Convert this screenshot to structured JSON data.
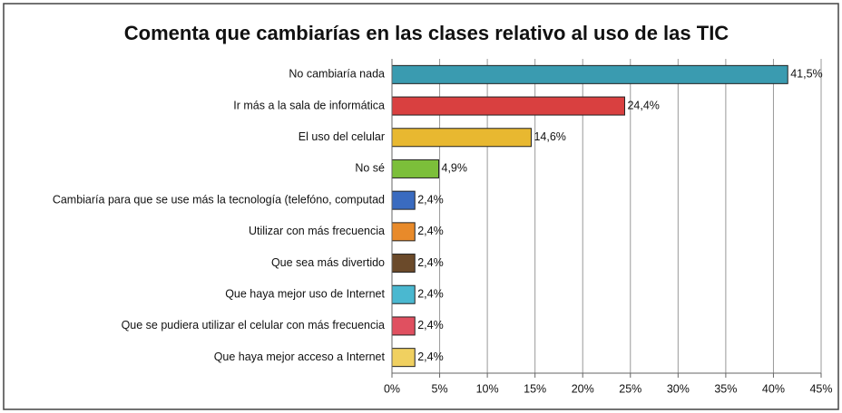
{
  "chart_data": {
    "type": "barh",
    "title": "Comenta que cambiarías en las clases relativo al uso de las TIC",
    "categories": [
      "No cambiaría nada",
      "Ir más a la sala de informática",
      "El uso del celular",
      "No sé",
      "Cambiaría para que se use más la tecnología (telefóno, computad",
      "Utilizar con más frecuencia",
      "Que sea más divertido",
      "Que haya mejor uso de Internet",
      "Que se pudiera utilizar el celular con más frecuencia",
      "Que haya mejor acceso a Internet"
    ],
    "values": [
      41.5,
      24.4,
      14.6,
      4.9,
      2.4,
      2.4,
      2.4,
      2.4,
      2.4,
      2.4
    ],
    "value_labels": [
      "41,5%",
      "24,4%",
      "14,6%",
      "4,9%",
      "2,4%",
      "2,4%",
      "2,4%",
      "2,4%",
      "2,4%",
      "2,4%"
    ],
    "colors": [
      "#3a9bb0",
      "#d94040",
      "#e8b830",
      "#7cbf3a",
      "#3a6bc0",
      "#e88a2a",
      "#6b4a2a",
      "#4ab8d0",
      "#e05060",
      "#f0d060"
    ],
    "xlim": [
      0,
      45
    ],
    "xticks": [
      {
        "value": 0,
        "label": "0%"
      },
      {
        "value": 5,
        "label": "5%"
      },
      {
        "value": 10,
        "label": "10%"
      },
      {
        "value": 15,
        "label": "15%"
      },
      {
        "value": 20,
        "label": "20%"
      },
      {
        "value": 25,
        "label": "25%"
      },
      {
        "value": 30,
        "label": "30%"
      },
      {
        "value": 35,
        "label": "35%"
      },
      {
        "value": 40,
        "label": "40%"
      },
      {
        "value": 45,
        "label": "45%"
      }
    ],
    "grid": true
  }
}
